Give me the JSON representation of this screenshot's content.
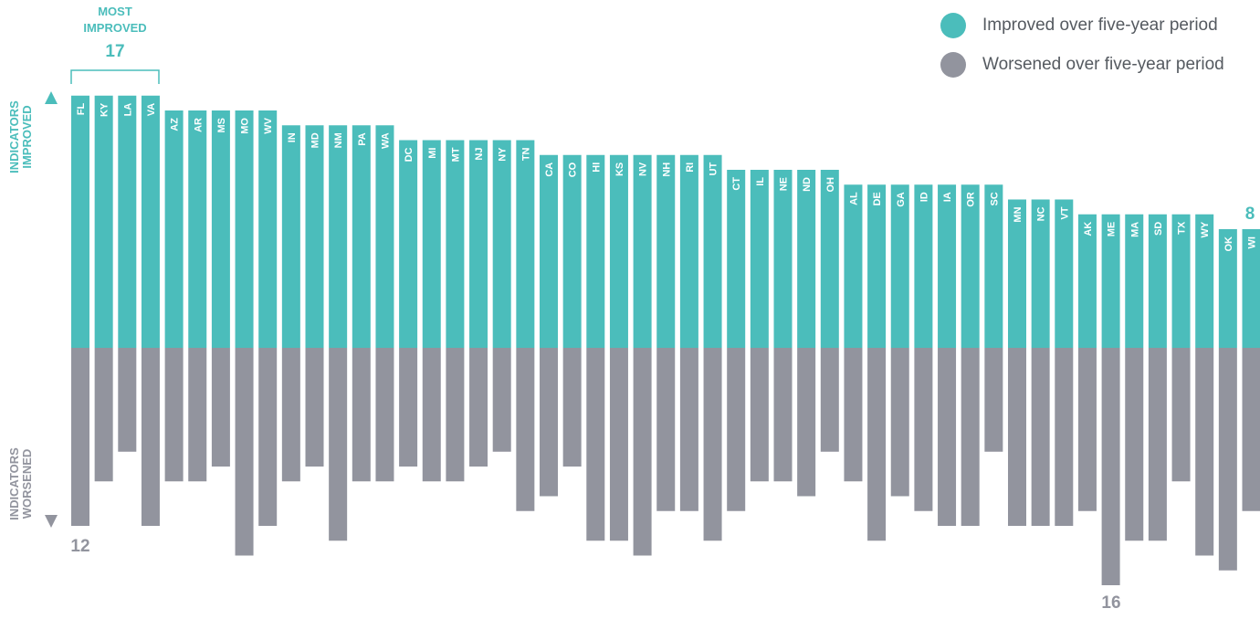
{
  "chart_data": {
    "type": "bar",
    "title": "",
    "xlabel": "",
    "ylabel": "",
    "categories": [
      "FL",
      "KY",
      "LA",
      "VA",
      "AZ",
      "AR",
      "MS",
      "MO",
      "WV",
      "IN",
      "MD",
      "NM",
      "PA",
      "WA",
      "DC",
      "MI",
      "MT",
      "NJ",
      "NY",
      "TN",
      "CA",
      "CO",
      "HI",
      "KS",
      "NV",
      "NH",
      "RI",
      "UT",
      "CT",
      "IL",
      "NE",
      "ND",
      "OH",
      "AL",
      "DE",
      "GA",
      "ID",
      "IA",
      "OR",
      "SC",
      "MN",
      "NC",
      "VT",
      "AK",
      "ME",
      "MA",
      "SD",
      "TX",
      "WY",
      "OK",
      "WI"
    ],
    "series": [
      {
        "name": "Improved over five-year period",
        "color": "#4bbdbb",
        "values": [
          17,
          17,
          17,
          17,
          16,
          16,
          16,
          16,
          16,
          15,
          15,
          15,
          15,
          15,
          14,
          14,
          14,
          14,
          14,
          14,
          13,
          13,
          13,
          13,
          13,
          13,
          13,
          13,
          12,
          12,
          12,
          12,
          12,
          11,
          11,
          11,
          11,
          11,
          11,
          11,
          10,
          10,
          10,
          9,
          9,
          9,
          9,
          9,
          9,
          8,
          8
        ]
      },
      {
        "name": "Worsened over five-year period",
        "color": "#92949e",
        "values": [
          12,
          9,
          7,
          12,
          9,
          9,
          8,
          14,
          12,
          9,
          8,
          13,
          9,
          9,
          8,
          9,
          9,
          8,
          7,
          11,
          10,
          8,
          13,
          13,
          14,
          11,
          11,
          13,
          11,
          9,
          9,
          10,
          7,
          9,
          13,
          10,
          11,
          12,
          12,
          7,
          12,
          12,
          12,
          11,
          16,
          13,
          13,
          9,
          14,
          15,
          11
        ]
      }
    ],
    "ylim": [
      -16,
      17
    ],
    "legend_position": "top-right",
    "axis_labels": {
      "improved": [
        "INDICATORS",
        "IMPROVED"
      ],
      "worsened": [
        "INDICATORS",
        "WORSENED"
      ]
    },
    "annotations": {
      "most_improved_title": [
        "MOST",
        "IMPROVED"
      ],
      "most_improved_value": "17",
      "left_worsened_value": "12",
      "right_improved_value": "8",
      "max_worsened_value": "16"
    }
  },
  "legend": {
    "items": [
      {
        "label": "Improved over five-year period",
        "color": "#4bbdbb"
      },
      {
        "label": "Worsened over five-year period",
        "color": "#92949e"
      }
    ]
  }
}
